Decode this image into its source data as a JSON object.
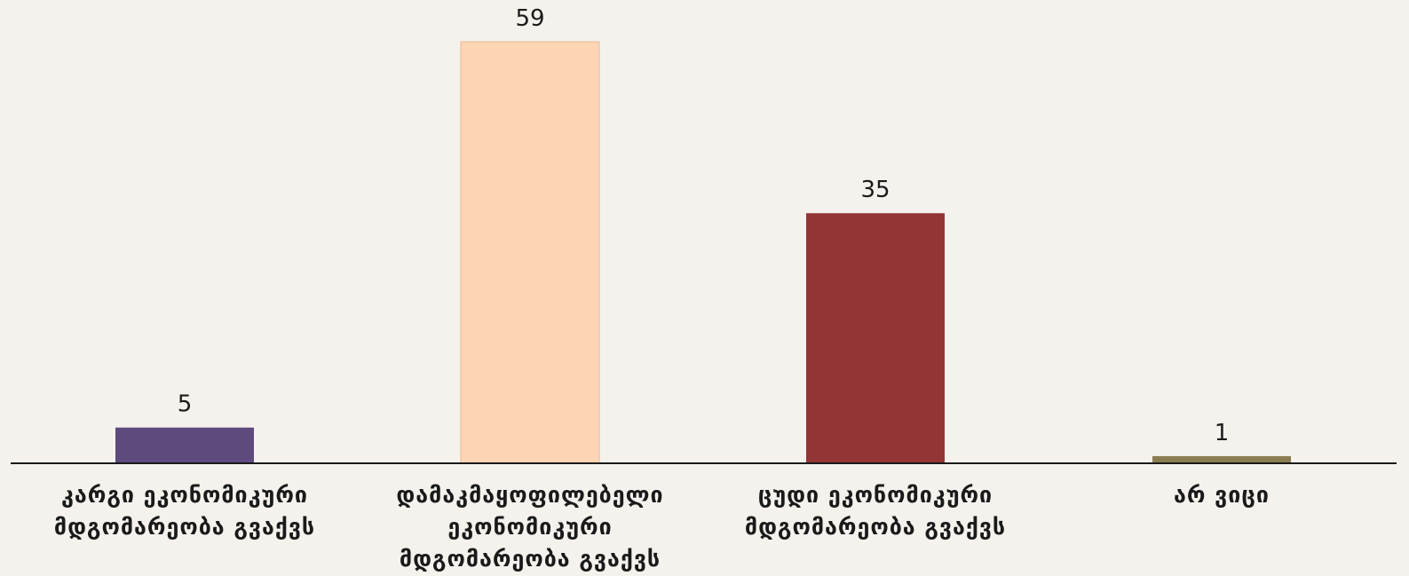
{
  "chart_data": {
    "type": "bar",
    "categories": [
      "კარგი ეკონომიკური მდგომარეობა გვაქვს",
      "დამაკმაყოფილებელი ეკონომიკური მდგომარეობა გვაქვს",
      "ცუდი ეკონომიკური მდგომარეობა გვაქვს",
      "არ ვიცი"
    ],
    "values": [
      5,
      59,
      35,
      1
    ],
    "data_labels": [
      "5",
      "59",
      "35",
      "1"
    ],
    "colors": [
      "#5e4a7c",
      "#fdd5b4",
      "#943535",
      "#8a7d52"
    ],
    "ylim": [
      0,
      59
    ],
    "grid": false,
    "legend": "none"
  }
}
